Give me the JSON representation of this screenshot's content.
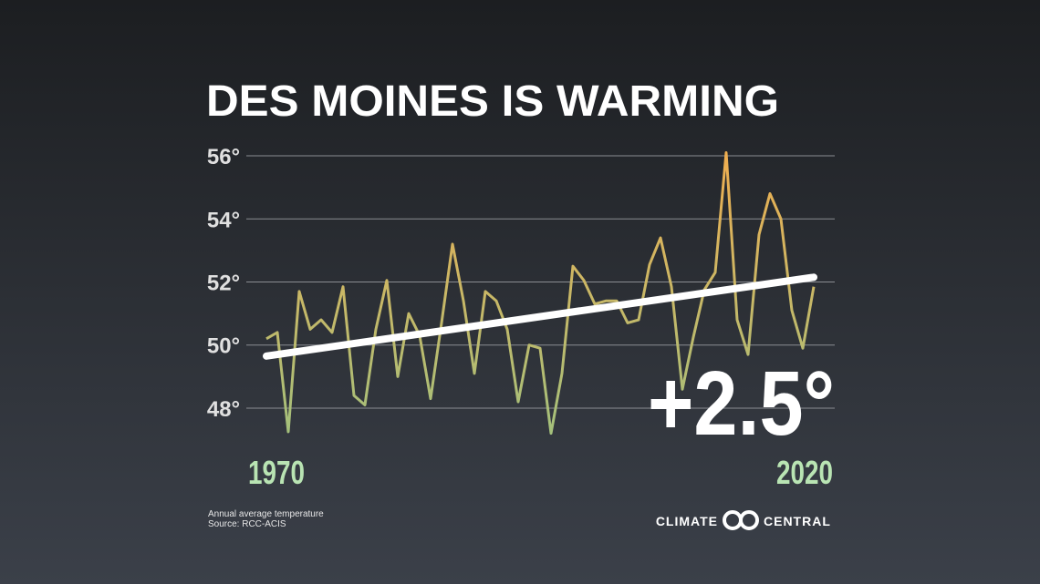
{
  "chart_data": {
    "type": "line",
    "title": "DES MOINES IS WARMING",
    "x": [
      1970,
      1971,
      1972,
      1973,
      1974,
      1975,
      1976,
      1977,
      1978,
      1979,
      1980,
      1981,
      1982,
      1983,
      1984,
      1985,
      1986,
      1987,
      1988,
      1989,
      1990,
      1991,
      1992,
      1993,
      1994,
      1995,
      1996,
      1997,
      1998,
      1999,
      2000,
      2001,
      2002,
      2003,
      2004,
      2005,
      2006,
      2007,
      2008,
      2009,
      2010,
      2011,
      2012,
      2013,
      2014,
      2015,
      2016,
      2017,
      2018,
      2019,
      2020
    ],
    "values": [
      50.2,
      50.4,
      47.25,
      51.7,
      50.5,
      50.8,
      50.4,
      51.85,
      48.4,
      48.1,
      50.5,
      52.05,
      49.0,
      51.0,
      50.3,
      48.3,
      50.7,
      53.2,
      51.4,
      49.1,
      51.7,
      51.4,
      50.5,
      48.2,
      50.0,
      49.9,
      47.2,
      49.1,
      52.5,
      52.05,
      51.3,
      51.4,
      51.4,
      50.7,
      50.8,
      52.55,
      53.4,
      51.85,
      48.6,
      50.25,
      51.75,
      52.3,
      56.1,
      50.8,
      49.7,
      53.5,
      54.8,
      54.0,
      51.1,
      49.9,
      51.85
    ],
    "colors": [
      "#9ec27f",
      "#f2ad4e"
    ],
    "trend": {
      "x": [
        1970,
        2020
      ],
      "values": [
        49.65,
        52.15
      ],
      "color": "#ffffff"
    },
    "annotation": "+2.5°",
    "xlim": [
      1970,
      2020
    ],
    "xticks": [
      1970,
      2020
    ],
    "ylim": [
      46.5,
      56.5
    ],
    "yticks": [
      {
        "value": 48,
        "label": "48°"
      },
      {
        "value": 50,
        "label": "50°"
      },
      {
        "value": 52,
        "label": "52°"
      },
      {
        "value": 54,
        "label": "54°"
      },
      {
        "value": 56,
        "label": "56°"
      }
    ],
    "grid": true,
    "footnote": [
      "Annual average temperature",
      "Source: RCC-ACIS"
    ],
    "logo": [
      "CLIMATE",
      "CENTRAL"
    ]
  }
}
